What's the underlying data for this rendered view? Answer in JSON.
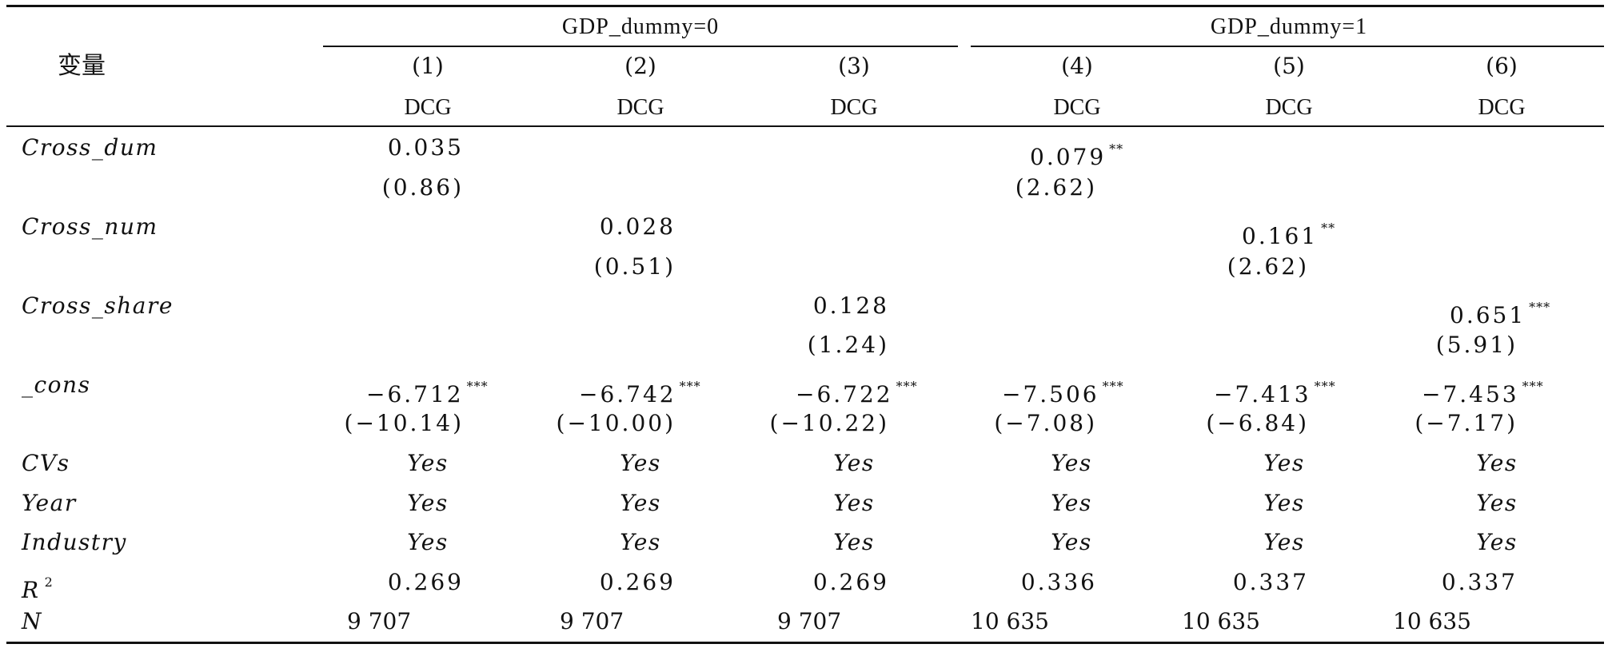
{
  "table": {
    "var_header": "变量",
    "groups": [
      "GDP_dummy=0",
      "GDP_dummy=1"
    ],
    "columns": [
      {
        "num": "(1)",
        "dep": "DCG"
      },
      {
        "num": "(2)",
        "dep": "DCG"
      },
      {
        "num": "(3)",
        "dep": "DCG"
      },
      {
        "num": "(4)",
        "dep": "DCG"
      },
      {
        "num": "(5)",
        "dep": "DCG"
      },
      {
        "num": "(6)",
        "dep": "DCG"
      }
    ],
    "rows": {
      "cross_dum": {
        "label": "Cross_dum",
        "c1": "0.035",
        "c1_t": "(0.86)",
        "c4": "0.079",
        "c4_stars": "**",
        "c4_t": "(2.62)"
      },
      "cross_num": {
        "label": "Cross_num",
        "c2": "0.028",
        "c2_t": "(0.51)",
        "c5": "0.161",
        "c5_stars": "**",
        "c5_t": "(2.62)"
      },
      "cross_share": {
        "label": "Cross_share",
        "c3": "0.128",
        "c3_t": "(1.24)",
        "c6": "0.651",
        "c6_stars": "***",
        "c6_t": "(5.91)"
      },
      "cons": {
        "label": "_cons",
        "values": [
          "−6.712",
          "−6.742",
          "−6.722",
          "−7.506",
          "−7.413",
          "−7.453"
        ],
        "stars": [
          "***",
          "***",
          "***",
          "***",
          "***",
          "***"
        ],
        "tstats": [
          "(−10.14)",
          "(−10.00)",
          "(−10.22)",
          "(−7.08)",
          "(−6.84)",
          "(−7.17)"
        ]
      },
      "cvs": {
        "label": "CVs",
        "values": [
          "Yes",
          "Yes",
          "Yes",
          "Yes",
          "Yes",
          "Yes"
        ]
      },
      "year": {
        "label": "Year",
        "values": [
          "Yes",
          "Yes",
          "Yes",
          "Yes",
          "Yes",
          "Yes"
        ]
      },
      "industry": {
        "label": "Industry",
        "values": [
          "Yes",
          "Yes",
          "Yes",
          "Yes",
          "Yes",
          "Yes"
        ]
      },
      "r2": {
        "label": "R",
        "label_sup": "2",
        "values": [
          "0.269",
          "0.269",
          "0.269",
          "0.336",
          "0.337",
          "0.337"
        ]
      },
      "n": {
        "label": "N",
        "values": [
          "9 707",
          "9 707",
          "9 707",
          "10 635",
          "10 635",
          "10 635"
        ]
      }
    }
  }
}
